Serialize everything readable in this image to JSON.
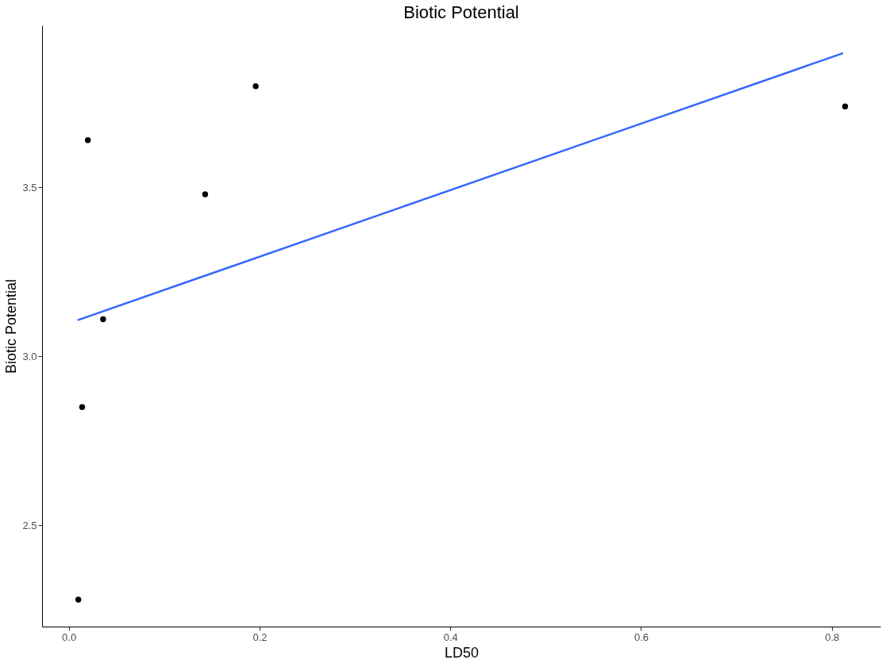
{
  "chart_data": {
    "type": "scatter",
    "title": "Biotic Potential",
    "xlabel": "LD50",
    "ylabel": "Biotic Potential",
    "xlim": [
      -0.028,
      0.851
    ],
    "ylim": [
      2.2,
      3.98
    ],
    "xticks": [
      {
        "value": 0,
        "label": "0.0"
      },
      {
        "value": 0.2,
        "label": "0.2"
      },
      {
        "value": 0.4,
        "label": "0.4"
      },
      {
        "value": 0.6,
        "label": "0.6"
      },
      {
        "value": 0.8,
        "label": "0.8"
      }
    ],
    "yticks": [
      {
        "value": 2.5,
        "label": "2.5"
      },
      {
        "value": 3,
        "label": "3.0"
      },
      {
        "value": 3.5,
        "label": "3.5"
      }
    ],
    "grid": false,
    "series": [
      {
        "marker": "circle",
        "color": "#000000",
        "x": [
          0.01,
          0.014,
          0.02,
          0.036,
          0.143,
          0.196,
          0.814
        ],
        "values": [
          2.28,
          2.85,
          3.64,
          3.11,
          3.48,
          3.8,
          3.74
        ]
      },
      {
        "type": "line",
        "color": "#3366ff",
        "x": [
          0.01,
          0.811
        ],
        "values": [
          3.108,
          3.897
        ]
      }
    ]
  }
}
